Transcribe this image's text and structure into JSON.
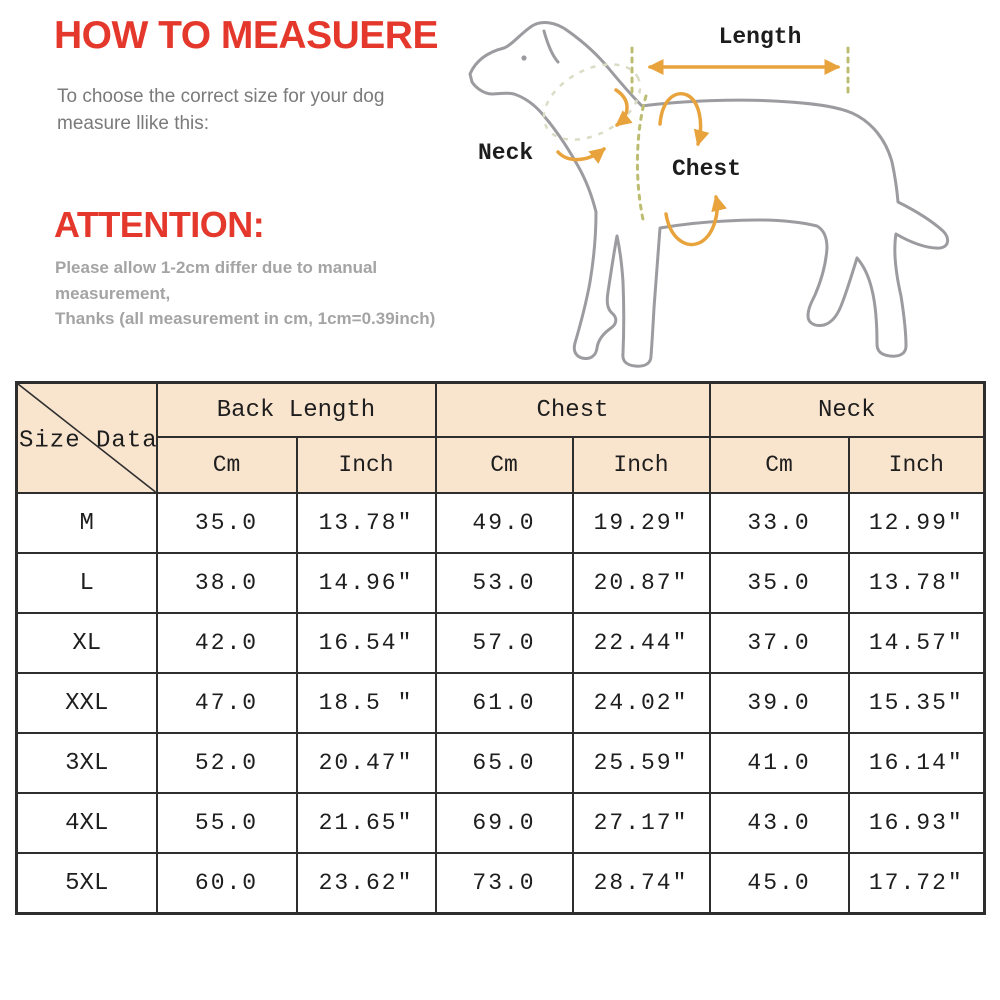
{
  "header": {
    "title": "HOW TO MEASUERE",
    "intro_line1": "To choose the correct size for your dog",
    "intro_line2": "measure llike this:"
  },
  "attention": {
    "title": "ATTENTION:",
    "line1": "Please allow 1-2cm differ due to manual measurement,",
    "line2": "Thanks (all measurement in cm, 1cm=0.39inch)"
  },
  "diagram": {
    "length_label": "Length",
    "neck_label": "Neck",
    "chest_label": "Chest"
  },
  "table": {
    "corner_label": "Size Data",
    "groups": [
      "Back Length",
      "Chest",
      "Neck"
    ],
    "unit_headers": [
      "Cm",
      "Inch",
      "Cm",
      "Inch",
      "Cm",
      "Inch"
    ],
    "rows": [
      [
        "M",
        "35.0",
        "13.78″",
        "49.0",
        "19.29″",
        "33.0",
        "12.99″"
      ],
      [
        "L",
        "38.0",
        "14.96″",
        "53.0",
        "20.87″",
        "35.0",
        "13.78″"
      ],
      [
        "XL",
        "42.0",
        "16.54″",
        "57.0",
        "22.44″",
        "37.0",
        "14.57″"
      ],
      [
        "XXL",
        "47.0",
        "18.5 ″",
        "61.0",
        "24.02″",
        "39.0",
        "15.35″"
      ],
      [
        "3XL",
        "52.0",
        "20.47″",
        "65.0",
        "25.59″",
        "41.0",
        "16.14″"
      ],
      [
        "4XL",
        "55.0",
        "21.65″",
        "69.0",
        "27.17″",
        "43.0",
        "16.93″"
      ],
      [
        "5XL",
        "60.0",
        "23.62″",
        "73.0",
        "28.74″",
        "45.0",
        "17.72″"
      ]
    ]
  },
  "colors": {
    "accent_red": "#E5382C",
    "text_gray": "#7A7A7A",
    "note_gray": "#A4A4A4",
    "table_header_bg": "#F9E4CD",
    "table_border": "#2E2E2E",
    "arrow_orange": "#E8A33C",
    "dog_outline": "#9C9CA0",
    "dash_olive": "#BDBD72",
    "dash_light": "#DCDCC6",
    "label_black": "#1D1D1D"
  }
}
